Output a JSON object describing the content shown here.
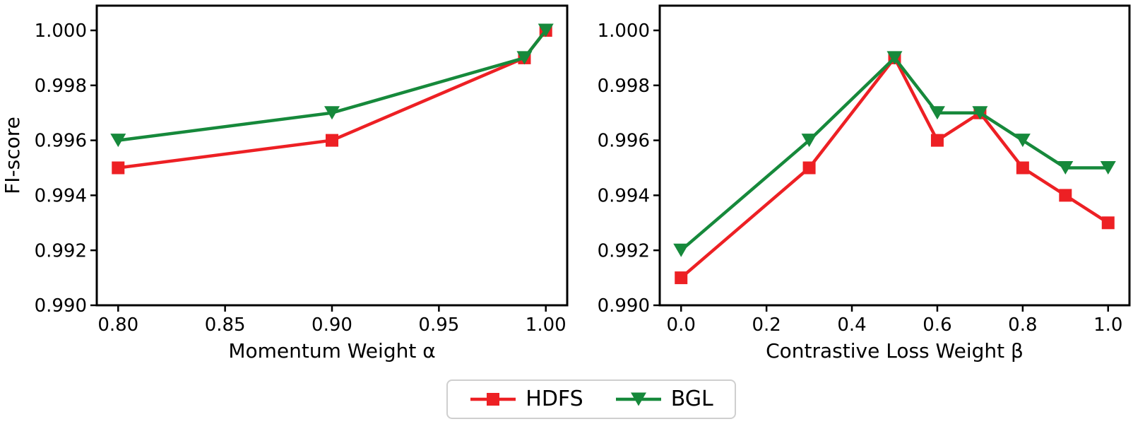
{
  "figure": {
    "background": "#ffffff",
    "text_color": "#000000",
    "ylabel": "FI-score",
    "legend": {
      "position": "bottom-center",
      "entries": [
        {
          "label": "HDFS",
          "color": "#ed2024",
          "marker": "square"
        },
        {
          "label": "BGL",
          "color": "#16893b",
          "marker": "triangle-down"
        }
      ]
    }
  },
  "chart_data": [
    {
      "type": "line",
      "title": "",
      "xlabel": "Momentum Weight α",
      "ylabel": "FI-score",
      "xlim": [
        0.79,
        1.01
      ],
      "ylim": [
        0.99,
        1.0009
      ],
      "grid": false,
      "xticks": [
        0.8,
        0.85,
        0.9,
        0.95,
        1.0
      ],
      "xtick_labels": [
        "0.80",
        "0.85",
        "0.90",
        "0.95",
        "1.00"
      ],
      "yticks": [
        0.99,
        0.992,
        0.994,
        0.996,
        0.998,
        1.0
      ],
      "ytick_labels": [
        "0.990",
        "0.992",
        "0.994",
        "0.996",
        "0.998",
        "1.000"
      ],
      "x": [
        0.8,
        0.9,
        0.99,
        1.0
      ],
      "series": [
        {
          "name": "HDFS",
          "color": "#ed2024",
          "marker": "square",
          "values": [
            0.995,
            0.996,
            0.999,
            1.0
          ]
        },
        {
          "name": "BGL",
          "color": "#16893b",
          "marker": "triangle-down",
          "values": [
            0.996,
            0.997,
            0.999,
            1.0
          ]
        }
      ]
    },
    {
      "type": "line",
      "title": "",
      "xlabel": "Contrastive Loss Weight β",
      "ylabel": "",
      "xlim": [
        -0.05,
        1.05
      ],
      "ylim": [
        0.99,
        1.0009
      ],
      "grid": false,
      "xticks": [
        0.0,
        0.2,
        0.4,
        0.6,
        0.8,
        1.0
      ],
      "xtick_labels": [
        "0.0",
        "0.2",
        "0.4",
        "0.6",
        "0.8",
        "1.0"
      ],
      "yticks": [
        0.99,
        0.992,
        0.994,
        0.996,
        0.998,
        1.0
      ],
      "ytick_labels": [
        "0.990",
        "0.992",
        "0.994",
        "0.996",
        "0.998",
        "1.000"
      ],
      "x": [
        0.0,
        0.3,
        0.5,
        0.6,
        0.7,
        0.8,
        0.9,
        1.0
      ],
      "series": [
        {
          "name": "HDFS",
          "color": "#ed2024",
          "marker": "square",
          "values": [
            0.991,
            0.995,
            0.999,
            0.996,
            0.997,
            0.995,
            0.994,
            0.993
          ]
        },
        {
          "name": "BGL",
          "color": "#16893b",
          "marker": "triangle-down",
          "values": [
            0.992,
            0.996,
            0.999,
            0.997,
            0.997,
            0.996,
            0.995,
            0.995
          ]
        }
      ]
    }
  ]
}
